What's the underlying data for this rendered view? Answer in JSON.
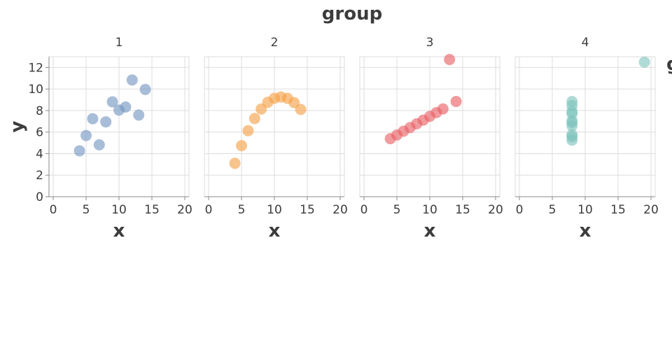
{
  "chart_data": {
    "type": "scatter",
    "title": "group",
    "legend_title_partial": "g",
    "xlabel": "x",
    "ylabel": "y",
    "xlim": [
      0,
      20
    ],
    "ylim": [
      0,
      13
    ],
    "x_ticks": [
      0,
      5,
      10,
      15,
      20
    ],
    "y_ticks": [
      0,
      2,
      4,
      6,
      8,
      10,
      12
    ],
    "grid": true,
    "facets": [
      {
        "name": "1",
        "color": "#7295c0",
        "points": [
          [
            10,
            8.04
          ],
          [
            8,
            6.95
          ],
          [
            13,
            7.58
          ],
          [
            9,
            8.81
          ],
          [
            11,
            8.33
          ],
          [
            14,
            9.96
          ],
          [
            6,
            7.24
          ],
          [
            4,
            4.26
          ],
          [
            12,
            10.84
          ],
          [
            7,
            4.82
          ],
          [
            5,
            5.68
          ]
        ]
      },
      {
        "name": "2",
        "color": "#f5a044",
        "points": [
          [
            10,
            9.14
          ],
          [
            8,
            8.14
          ],
          [
            13,
            8.74
          ],
          [
            9,
            8.77
          ],
          [
            11,
            9.26
          ],
          [
            14,
            8.1
          ],
          [
            6,
            6.13
          ],
          [
            4,
            3.1
          ],
          [
            12,
            9.13
          ],
          [
            7,
            7.26
          ],
          [
            5,
            4.74
          ]
        ]
      },
      {
        "name": "3",
        "color": "#e85e63",
        "points": [
          [
            10,
            7.46
          ],
          [
            8,
            6.77
          ],
          [
            13,
            12.74
          ],
          [
            9,
            7.11
          ],
          [
            11,
            7.81
          ],
          [
            14,
            8.84
          ],
          [
            6,
            6.08
          ],
          [
            4,
            5.39
          ],
          [
            12,
            8.15
          ],
          [
            7,
            6.42
          ],
          [
            5,
            5.73
          ]
        ]
      },
      {
        "name": "4",
        "color": "#7ec4bd",
        "points": [
          [
            8,
            6.58
          ],
          [
            8,
            5.76
          ],
          [
            8,
            7.71
          ],
          [
            8,
            8.84
          ],
          [
            8,
            8.47
          ],
          [
            8,
            7.04
          ],
          [
            8,
            5.25
          ],
          [
            19,
            12.5
          ],
          [
            8,
            5.56
          ],
          [
            8,
            7.91
          ],
          [
            8,
            6.89
          ]
        ]
      }
    ]
  }
}
